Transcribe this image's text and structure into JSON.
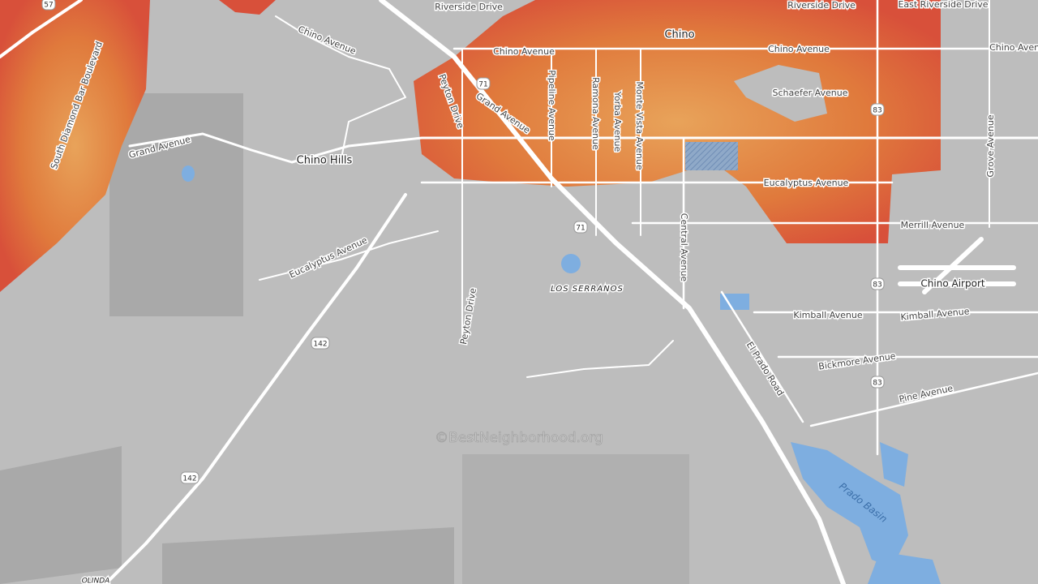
{
  "places": {
    "chino": "Chino",
    "chino_hills": "Chino Hills",
    "los_serranos": "LOS SERRANOS",
    "olinda": "OLINDA",
    "chino_airport": "Chino Airport",
    "prado_basin": "Prado Basin"
  },
  "streets": [
    "Riverside Drive",
    "Riverside Drive",
    "East Riverside Drive",
    "Chino Avenue",
    "Chino Avenue",
    "Chino Avenue",
    "Chino Avenue",
    "Schaefer Avenue",
    "Pipeline Avenue",
    "Ramona Avenue",
    "Monte Vista Avenue",
    "Yorba Avenue",
    "Grand Avenue",
    "Grand Avenue",
    "Peyton Drive",
    "Peyton Drive",
    "Eucalyptus Avenue",
    "Eucalyptus Avenue",
    "South Diamond Bar Boulevard",
    "Grove Avenue",
    "Merrill Avenue",
    "Central Avenue",
    "Kimball Avenue",
    "Kimball Avenue",
    "Bickmore Avenue",
    "Pine Avenue",
    "El Prado Road"
  ],
  "shields": [
    "57",
    "71",
    "71",
    "83",
    "83",
    "83",
    "142",
    "142"
  ],
  "watermark": "©BestNeighborhood.org"
}
